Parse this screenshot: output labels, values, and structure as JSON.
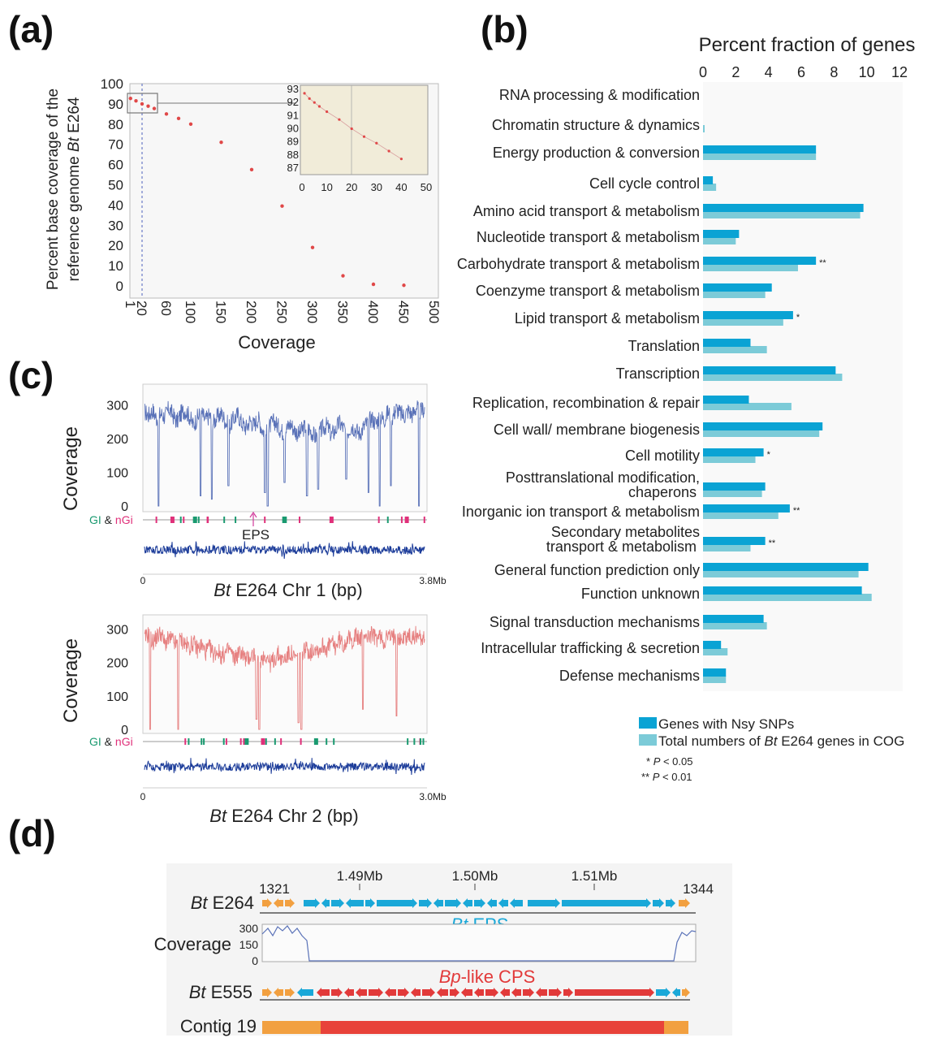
{
  "panels": {
    "a": "(a)",
    "b": "(b)",
    "c": "(c)",
    "d": "(d)"
  },
  "colors": {
    "nsy": "#0aa3d4",
    "total": "#7ccbd8",
    "chr1": "#5a72b8",
    "chr2": "#e68080",
    "eps_label": "#1aa8d8",
    "cps_label": "#e23a3a",
    "orange": "#f2a040",
    "gi": "#1a9a70",
    "ngi": "#e0307a"
  },
  "chart_data": [
    {
      "type": "scatter",
      "ylabel_line1": "Percent base coverage of the",
      "ylabel_line2_pre": "reference genome ",
      "ylabel_line2_it": "Bt",
      "ylabel_line2_post": " E264",
      "xlabel": "Coverage",
      "xticks": [
        "1",
        "20",
        "60",
        "100",
        "150",
        "200",
        "250",
        "300",
        "350",
        "400",
        "450",
        "500"
      ],
      "yticks": [
        "100",
        "90",
        "80",
        "70",
        "60",
        "50",
        "40",
        "30",
        "20",
        "10",
        "0"
      ],
      "xlim": [
        0,
        500
      ],
      "ylim": [
        0,
        100
      ],
      "points": [
        {
          "x": 1,
          "y": 92.7
        },
        {
          "x": 10,
          "y": 91.5
        },
        {
          "x": 20,
          "y": 90.0
        },
        {
          "x": 30,
          "y": 88.9
        },
        {
          "x": 40,
          "y": 87.7
        },
        {
          "x": 60,
          "y": 85.0
        },
        {
          "x": 80,
          "y": 82.8
        },
        {
          "x": 100,
          "y": 80.0
        },
        {
          "x": 150,
          "y": 71.0
        },
        {
          "x": 200,
          "y": 57.5
        },
        {
          "x": 250,
          "y": 39.5
        },
        {
          "x": 300,
          "y": 19.0
        },
        {
          "x": 350,
          "y": 5.0
        },
        {
          "x": 400,
          "y": 0.8
        },
        {
          "x": 450,
          "y": 0.3
        }
      ],
      "inset": {
        "xticks": [
          "0",
          "10",
          "20",
          "30",
          "40",
          "50"
        ],
        "yticks": [
          "93",
          "92",
          "91",
          "90",
          "89",
          "88",
          "87"
        ],
        "xlim": [
          0,
          50
        ],
        "ylim": [
          87,
          93
        ],
        "points": [
          {
            "x": 1,
            "y": 92.7
          },
          {
            "x": 3,
            "y": 92.3
          },
          {
            "x": 5,
            "y": 92.0
          },
          {
            "x": 7,
            "y": 91.7
          },
          {
            "x": 10,
            "y": 91.3
          },
          {
            "x": 15,
            "y": 90.7
          },
          {
            "x": 20,
            "y": 90.0
          },
          {
            "x": 25,
            "y": 89.4
          },
          {
            "x": 30,
            "y": 88.9
          },
          {
            "x": 35,
            "y": 88.3
          },
          {
            "x": 40,
            "y": 87.7
          }
        ]
      }
    },
    {
      "type": "bar",
      "title": "Percent fraction of genes",
      "xticks": [
        "0",
        "2",
        "4",
        "6",
        "8",
        "10",
        "12"
      ],
      "xlim": [
        0,
        12
      ],
      "categories": [
        [
          "RNA processing & modification"
        ],
        [
          "Chromatin structure & dynamics"
        ],
        [
          "Energy production & conversion"
        ],
        [
          "Cell cycle control"
        ],
        [
          "Amino acid transport & metabolism"
        ],
        [
          "Nucleotide transport & metabolism"
        ],
        [
          "Carbohydrate transport & metabolism"
        ],
        [
          "Coenzyme transport & metabolism"
        ],
        [
          "Lipid transport & metabolism"
        ],
        [
          "Translation"
        ],
        [
          "Transcription"
        ],
        [
          "Replication, recombination & repair"
        ],
        [
          "Cell wall/ membrane biogenesis"
        ],
        [
          "Cell motility"
        ],
        [
          "Posttranslational modification,",
          "chaperons"
        ],
        [
          "Inorganic ion transport & metabolism"
        ],
        [
          "Secondary metabolites",
          "transport & metabolism"
        ],
        [
          "General function prediction only"
        ],
        [
          "Function unknown"
        ],
        [
          "Signal transduction mechanisms"
        ],
        [
          "Intracellular trafficking & secretion"
        ],
        [
          "Defense mechanisms"
        ]
      ],
      "series": [
        {
          "name": "Genes with Nsy SNPs",
          "values": [
            0,
            0,
            6.9,
            0.6,
            9.8,
            2.2,
            6.9,
            4.2,
            5.5,
            2.9,
            8.1,
            2.8,
            7.3,
            3.7,
            3.8,
            5.3,
            3.8,
            10.1,
            9.7,
            3.7,
            1.1,
            1.4
          ]
        },
        {
          "name_pre": "Total numbers of ",
          "name_it": "Bt",
          "name_post": " E264 genes in COG",
          "values": [
            0,
            0.1,
            6.9,
            0.8,
            9.6,
            2.0,
            5.8,
            3.8,
            4.9,
            3.9,
            8.5,
            5.4,
            7.1,
            3.2,
            3.6,
            4.6,
            2.9,
            9.5,
            10.3,
            3.9,
            1.5,
            1.4
          ]
        }
      ],
      "significance": [
        "",
        "",
        "",
        "",
        "",
        "",
        "**",
        "",
        "*",
        "",
        "",
        "",
        "",
        "*",
        "",
        "**",
        "**",
        "",
        "",
        "",
        "",
        ""
      ],
      "notes": [
        {
          "stars": "*",
          "it": "P",
          "rest": " < 0.05"
        },
        {
          "stars": "**",
          "it": "P",
          "rest": " < 0.01"
        }
      ]
    },
    {
      "type": "line",
      "ylabel": "Coverage",
      "yticks": [
        "300",
        "200",
        "100",
        "0"
      ],
      "ylim": [
        0,
        350
      ],
      "x_start": "0",
      "x_end": "3.8Mb",
      "xlabel_it": "Bt",
      "xlabel_rest": " E264 Chr 1 (bp)",
      "gi": "GI",
      "amp": "&",
      "ngi": "nGi",
      "annotation": "EPS",
      "profile": [
        280,
        270,
        285,
        260,
        275,
        265,
        290,
        270,
        250,
        275,
        285,
        268,
        240,
        262,
        278,
        255,
        270,
        248,
        265,
        275,
        250,
        238,
        260,
        272,
        246,
        232,
        255,
        240,
        262,
        228,
        215,
        240,
        252,
        235,
        220,
        230,
        245,
        225,
        212,
        230,
        238,
        222,
        205,
        218,
        232,
        240,
        210,
        225,
        248,
        232,
        218,
        240,
        228,
        215,
        235,
        250,
        262,
        245,
        270,
        255,
        280,
        262,
        290,
        275,
        268,
        285,
        270,
        295,
        280,
        290
      ],
      "dips": [
        [
          0.05,
          0
        ],
        [
          0.2,
          30
        ],
        [
          0.24,
          20
        ],
        [
          0.3,
          60
        ],
        [
          0.43,
          40
        ],
        [
          0.44,
          0
        ],
        [
          0.5,
          70
        ],
        [
          0.58,
          30
        ],
        [
          0.62,
          50
        ],
        [
          0.72,
          80
        ],
        [
          0.8,
          40
        ],
        [
          0.84,
          0
        ],
        [
          0.88,
          60
        ],
        [
          0.98,
          0
        ]
      ]
    },
    {
      "type": "line",
      "ylabel": "Coverage",
      "yticks": [
        "300",
        "200",
        "100",
        "0"
      ],
      "ylim": [
        0,
        330
      ],
      "x_start": "0",
      "x_end": "3.0Mb",
      "xlabel_it": "Bt",
      "xlabel_rest": " E264 Chr 2 (bp)",
      "gi": "GI",
      "amp": "&",
      "ngi": "nGi",
      "profile": [
        270,
        285,
        260,
        275,
        290,
        255,
        270,
        265,
        250,
        270,
        255,
        245,
        260,
        238,
        252,
        230,
        244,
        225,
        235,
        218,
        228,
        240,
        210,
        225,
        232,
        205,
        218,
        226,
        200,
        215,
        222,
        196,
        210,
        225,
        205,
        218,
        230,
        210,
        222,
        235,
        240,
        228,
        248,
        235,
        252,
        240,
        260,
        245,
        268,
        250,
        275,
        262,
        280,
        268,
        292,
        275,
        285,
        270,
        278,
        262,
        280,
        270,
        290,
        265,
        275,
        280,
        270,
        285,
        272,
        280
      ],
      "dips": [
        [
          0.02,
          0
        ],
        [
          0.12,
          0
        ],
        [
          0.4,
          30
        ],
        [
          0.41,
          0
        ],
        [
          0.55,
          20
        ],
        [
          0.56,
          0
        ],
        [
          0.78,
          60
        ],
        [
          0.9,
          40
        ]
      ]
    },
    {
      "type": "table",
      "ruler": [
        "1.49Mb",
        "1.50Mb",
        "1.51Mb"
      ],
      "gene_start": "1321",
      "gene_end": "1344",
      "track1_it": "Bt",
      "track1_rest": " E264",
      "eps_it": "Bt",
      "eps_rest": " EPS",
      "coverage_label": "Coverage",
      "coverage_ticks": [
        "300",
        "150",
        "0"
      ],
      "track2_it": "Bt",
      "track2_rest": " E555",
      "cps_it": "Bp",
      "cps_rest": "-like CPS",
      "contig_label": "Contig 19"
    }
  ]
}
